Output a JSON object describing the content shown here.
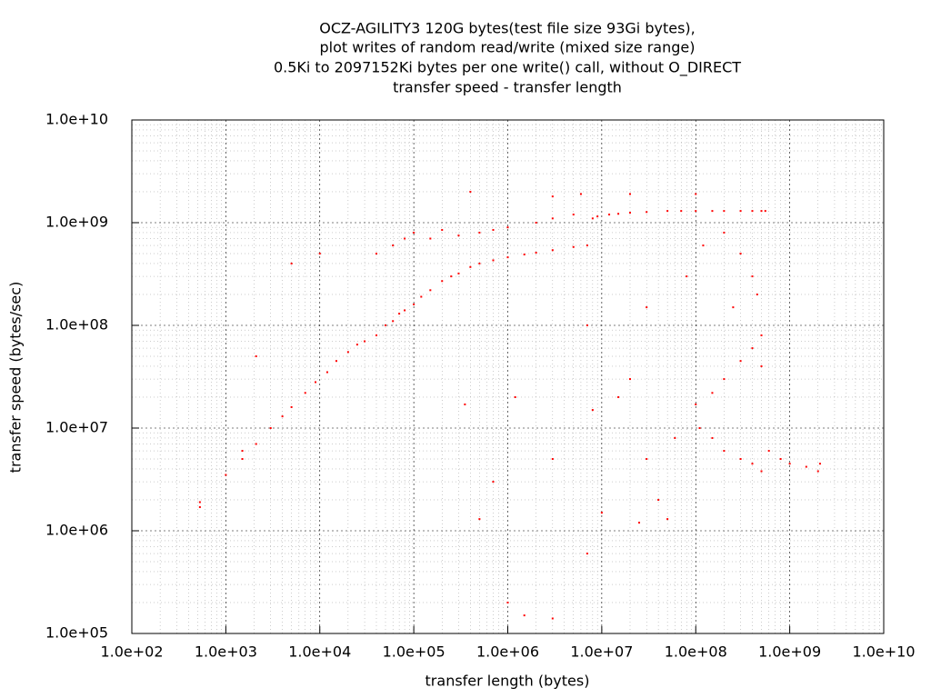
{
  "chart_data": {
    "type": "scatter",
    "title_lines": [
      "OCZ-AGILITY3 120G bytes(test file size 93Gi bytes),",
      "plot writes of random read/write (mixed size range)",
      "0.5Ki to 2097152Ki bytes per one write() call, without O_DIRECT",
      "transfer speed - transfer length"
    ],
    "x_label": "transfer length (bytes)",
    "y_label": "transfer speed (bytes/sec)",
    "x_log": true,
    "y_log": true,
    "grid": true,
    "minor_grid": true,
    "color": "#ff0000",
    "xlim": [
      100,
      10000000000
    ],
    "ylim": [
      100000,
      10000000000
    ],
    "xticks": [
      {
        "value": 100,
        "label": "1.0e+02"
      },
      {
        "value": 1000,
        "label": "1.0e+03"
      },
      {
        "value": 10000,
        "label": "1.0e+04"
      },
      {
        "value": 100000,
        "label": "1.0e+05"
      },
      {
        "value": 1000000,
        "label": "1.0e+06"
      },
      {
        "value": 10000000,
        "label": "1.0e+07"
      },
      {
        "value": 100000000,
        "label": "1.0e+08"
      },
      {
        "value": 1000000000,
        "label": "1.0e+09"
      },
      {
        "value": 10000000000,
        "label": "1.0e+10"
      }
    ],
    "yticks": [
      {
        "value": 100000,
        "label": "1.0e+05"
      },
      {
        "value": 1000000,
        "label": "1.0e+06"
      },
      {
        "value": 10000000,
        "label": "1.0e+07"
      },
      {
        "value": 100000000,
        "label": "1.0e+08"
      },
      {
        "value": 1000000000,
        "label": "1.0e+09"
      },
      {
        "value": 10000000000,
        "label": "1.0e+10"
      }
    ],
    "x": [
      530,
      530,
      1000,
      1500,
      1500,
      2100,
      2100,
      3000,
      4000,
      5000,
      7000,
      9000,
      12000,
      15000,
      20000,
      25000,
      30000,
      40000,
      50000,
      60000,
      70000,
      80000,
      100000,
      120000,
      150000,
      200000,
      250000,
      300000,
      400000,
      500000,
      700000,
      1000000,
      1500000,
      2000000,
      3000000,
      5000000,
      7000000,
      8000000,
      9000000,
      12000000,
      15000000,
      20000000,
      30000000,
      50000000,
      70000000,
      100000000,
      150000000,
      200000000,
      300000000,
      400000000,
      500000000,
      550000000,
      40000,
      60000,
      80000,
      100000,
      150000,
      200000,
      300000,
      500000,
      700000,
      1000000,
      2000000,
      3000000,
      5000000,
      5000,
      10000,
      400000,
      3000000,
      6000000,
      20000000,
      100000000,
      100000000,
      150000000,
      200000000,
      300000000,
      400000000,
      500000000,
      110000000,
      150000000,
      200000000,
      300000000,
      400000000,
      500000000,
      600000000,
      800000000,
      1000000000,
      1500000000,
      2000000000,
      2100000000,
      20000000,
      30000000,
      40000000,
      60000000,
      80000000,
      50000000,
      30000000,
      15000000,
      200000000,
      300000000,
      400000000,
      500000000,
      250000000,
      10000000,
      7000000,
      3000000,
      1500000,
      500000,
      1000000,
      1200000,
      8000000,
      7000000,
      25000000,
      120000000,
      450000000,
      350000,
      700000,
      3000000
    ],
    "values": [
      1700000,
      1900000,
      3500000,
      5000000,
      6000000,
      7000000,
      50000000,
      10000000,
      13000000,
      16000000,
      22000000,
      28000000,
      35000000,
      45000000,
      55000000,
      65000000,
      70000000,
      80000000,
      100000000,
      110000000,
      130000000,
      140000000,
      160000000,
      190000000,
      220000000,
      270000000,
      300000000,
      320000000,
      370000000,
      400000000,
      430000000,
      460000000,
      490000000,
      510000000,
      540000000,
      580000000,
      600000000,
      1100000000,
      1150000000,
      1200000000,
      1220000000,
      1250000000,
      1270000000,
      1300000000,
      1300000000,
      1300000000,
      1300000000,
      1300000000,
      1300000000,
      1300000000,
      1300000000,
      1300000000,
      500000000,
      600000000,
      700000000,
      800000000,
      700000000,
      850000000,
      750000000,
      800000000,
      850000000,
      900000000,
      1000000000,
      1100000000,
      1200000000,
      400000000,
      500000000,
      2000000000,
      1800000000,
      1900000000,
      1900000000,
      1900000000,
      17000000,
      22000000,
      30000000,
      45000000,
      60000000,
      80000000,
      10000000,
      8000000,
      6000000,
      5000000,
      4500000,
      3800000,
      6000000,
      5000000,
      4500000,
      4200000,
      3800000,
      4500000,
      30000000,
      150000000,
      2000000,
      8000000,
      300000000,
      1300000,
      5000000,
      20000000,
      800000000,
      500000000,
      300000000,
      40000000,
      150000000,
      1500000,
      600000,
      5000000,
      150000,
      1300000,
      200000,
      20000000,
      15000000,
      100000000,
      1200000,
      600000000,
      200000000,
      17000000,
      3000000,
      140000
    ]
  }
}
